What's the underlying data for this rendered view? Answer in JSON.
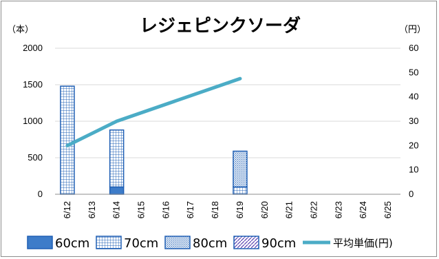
{
  "chart_data": {
    "type": "bar",
    "title": "レジェピンクソーダ",
    "y_left_unit": "（本）",
    "y_right_unit": "（円）",
    "categories": [
      "6/12",
      "6/13",
      "6/14",
      "6/15",
      "6/16",
      "6/17",
      "6/18",
      "6/19",
      "6/20",
      "6/21",
      "6/22",
      "6/23",
      "6/24",
      "6/25"
    ],
    "ylim_left": [
      0,
      2000
    ],
    "yticks_left": [
      "0",
      "500",
      "1000",
      "1500",
      "2000"
    ],
    "ylim_right": [
      0,
      60
    ],
    "yticks_right": [
      "0",
      "10",
      "20",
      "30",
      "40",
      "50",
      "60"
    ],
    "stacked": true,
    "series": [
      {
        "name": "60cm",
        "axis": "left",
        "pattern": "solid",
        "values": [
          0,
          null,
          100,
          null,
          null,
          null,
          null,
          0,
          null,
          null,
          null,
          null,
          null,
          null
        ]
      },
      {
        "name": "70cm",
        "axis": "left",
        "pattern": "grid",
        "values": [
          1480,
          null,
          780,
          null,
          null,
          null,
          null,
          100,
          null,
          null,
          null,
          null,
          null,
          null
        ]
      },
      {
        "name": "80cm",
        "axis": "left",
        "pattern": "dots",
        "values": [
          0,
          null,
          0,
          null,
          null,
          null,
          null,
          490,
          null,
          null,
          null,
          null,
          null,
          null
        ]
      },
      {
        "name": "90cm",
        "axis": "left",
        "pattern": "diagonal",
        "values": [
          0,
          null,
          0,
          null,
          null,
          null,
          null,
          0,
          null,
          null,
          null,
          null,
          null,
          null
        ]
      }
    ],
    "line_series": {
      "name": "平均単価(円)",
      "axis": "right",
      "color": "#4bacc6",
      "values": [
        20,
        null,
        30,
        null,
        null,
        null,
        null,
        47.5,
        null,
        null,
        null,
        null,
        null,
        null
      ]
    },
    "grid": true,
    "legend_position": "bottom",
    "colors": {
      "bar_border": "#1f5fb4",
      "bar_solid": "#3d7cc9",
      "line": "#4bacc6",
      "grid": "#d9d9d9",
      "axis": "#8c8c8c"
    }
  }
}
